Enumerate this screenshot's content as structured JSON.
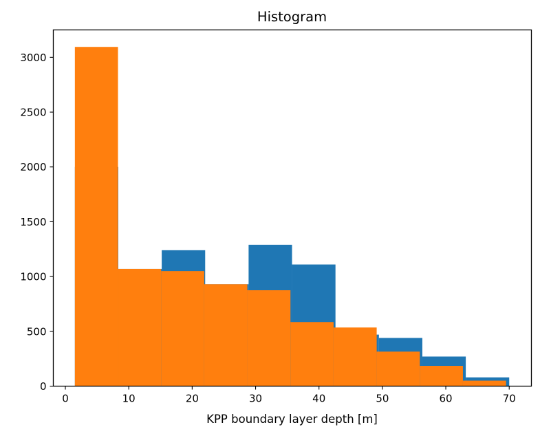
{
  "chart_data": {
    "type": "histogram",
    "title": "Histogram",
    "xlabel": "KPP boundary layer depth [m]",
    "ylabel": "",
    "xlim": [
      -1.9,
      73.5
    ],
    "ylim": [
      0,
      3250
    ],
    "xticks": [
      0,
      10,
      20,
      30,
      40,
      50,
      60,
      70
    ],
    "yticks": [
      0,
      500,
      1000,
      1500,
      2000,
      2500,
      3000
    ],
    "grid": false,
    "series": [
      {
        "color": "#1f77b4",
        "bin_edges": [
          1.5,
          8.35,
          15.2,
          22.05,
          28.9,
          35.75,
          42.6,
          49.45,
          56.3,
          63.15,
          70.0
        ],
        "counts": [
          2000,
          1070,
          1240,
          930,
          1290,
          1110,
          470,
          440,
          270,
          80
        ]
      },
      {
        "color": "#ff7f0e",
        "bin_edges": [
          1.5,
          8.3,
          15.1,
          21.9,
          28.7,
          35.5,
          42.3,
          49.1,
          55.9,
          62.7,
          69.5
        ],
        "counts": [
          3095,
          1070,
          1050,
          930,
          875,
          585,
          535,
          315,
          185,
          50
        ]
      }
    ]
  }
}
